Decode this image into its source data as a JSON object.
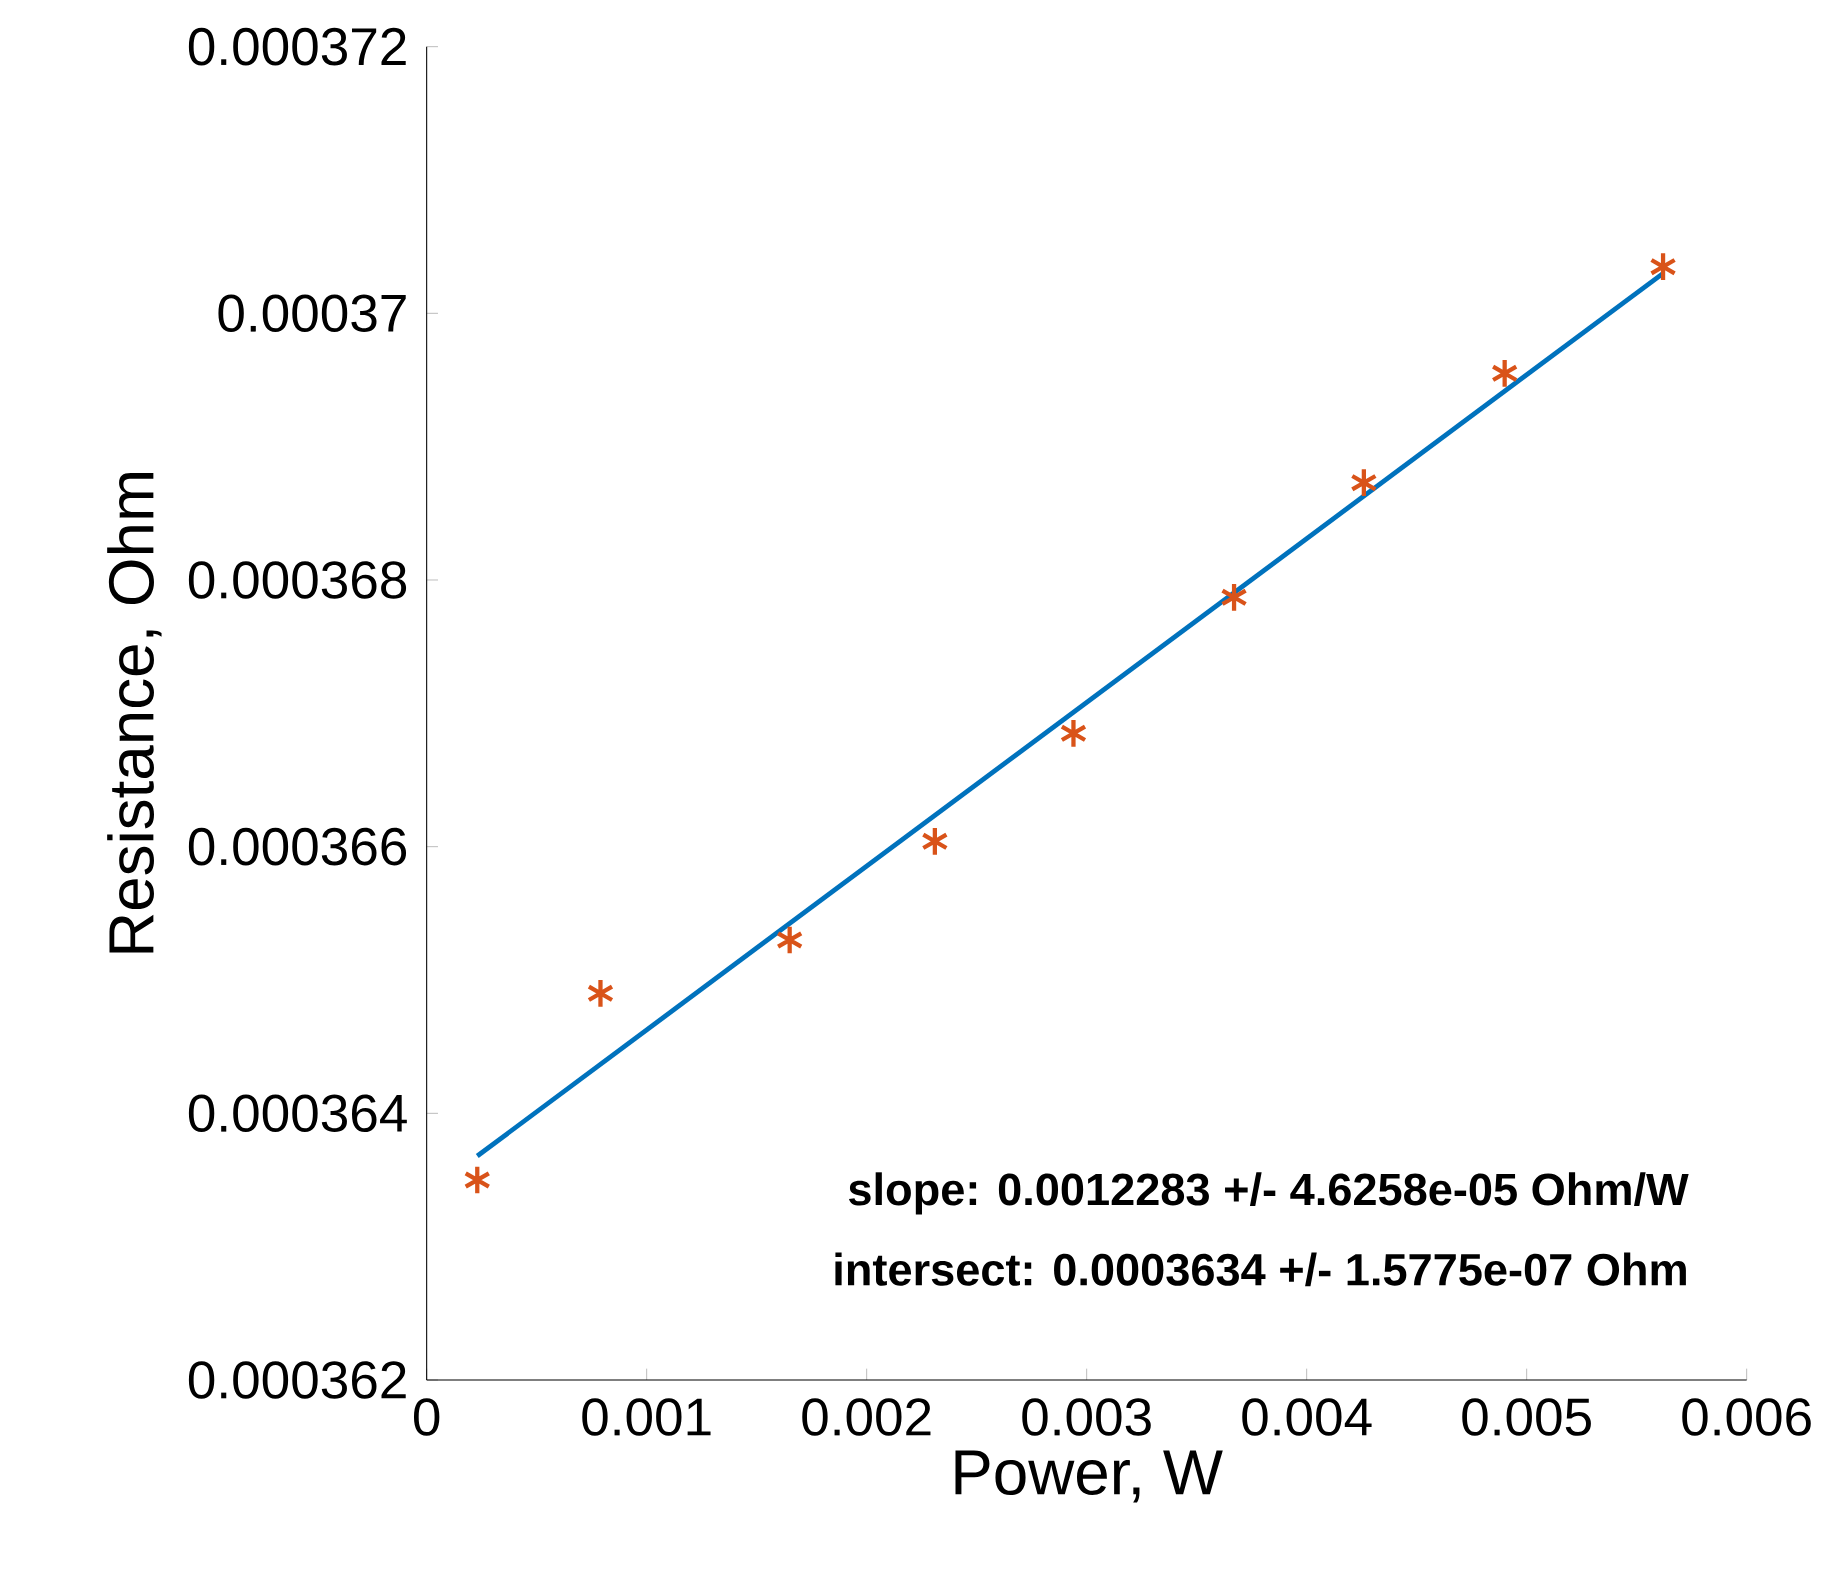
{
  "chart_data": {
    "type": "scatter",
    "xlabel": "Power, W",
    "ylabel": "Resistance, Ohm",
    "xlim": [
      0,
      0.006
    ],
    "ylim": [
      0.000362,
      0.000372
    ],
    "xticks": [
      0,
      0.001,
      0.002,
      0.003,
      0.004,
      0.005,
      0.006
    ],
    "yticks": [
      0.000362,
      0.000364,
      0.000366,
      0.000368,
      0.00037,
      0.000372
    ],
    "grid": false,
    "series": [
      {
        "marker": "cross",
        "color": "#d95319",
        "x": [
          0.00023,
          0.00079,
          0.00165,
          0.00231,
          0.00294,
          0.00367,
          0.00426,
          0.0049,
          0.00562
        ],
        "values": [
          0.0003635,
          0.0003649,
          0.0003653,
          0.00036604,
          0.00036685,
          0.00036787,
          0.00036873,
          0.00036955,
          0.00037035
        ]
      },
      {
        "type": "line",
        "marker": "none",
        "color": "#0072bd",
        "line_style": "solid",
        "x": [
          0.00023,
          0.00562
        ],
        "values": [
          0.00036368,
          0.0003703
        ]
      }
    ],
    "annotations": [
      "slope: 0.0012283 +/- 4.6258e-05 Ohm/W",
      "intersect: 0.0003634 +/- 1.5775e-07 Ohm"
    ]
  }
}
